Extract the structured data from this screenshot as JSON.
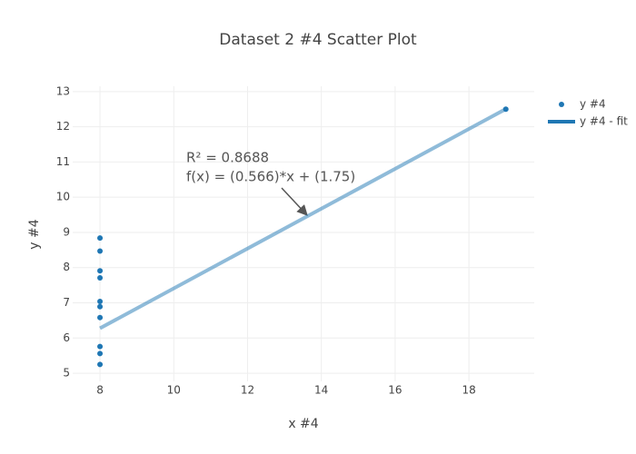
{
  "chart_data": {
    "type": "scatter",
    "title": "Dataset 2 #4 Scatter Plot",
    "x_label": "x #4",
    "y_label": "y #4",
    "series": [
      {
        "name": "y #4",
        "color": "#1f77b4",
        "mode": "markers",
        "x": [
          8,
          8,
          8,
          8,
          8,
          8,
          8,
          19,
          8,
          8,
          8
        ],
        "values": [
          6.58,
          5.76,
          7.71,
          8.84,
          8.47,
          7.04,
          5.25,
          12.5,
          5.56,
          7.91,
          6.89
        ]
      },
      {
        "name": "y #4 - fit",
        "color": "#1f77b4",
        "mode": "line",
        "x": [
          8,
          19
        ],
        "values": [
          6.278,
          12.504
        ]
      }
    ],
    "annotations": [
      "R² = 0.8688",
      "f(x) = (0.566)*x + (1.75)"
    ],
    "xlim": [
      7.26,
      19.77
    ],
    "xticks": [
      8,
      10,
      12,
      14,
      16,
      18
    ],
    "ylim": [
      4.77,
      13.15
    ],
    "yticks": [
      5,
      6,
      7,
      8,
      9,
      10,
      11,
      12,
      13
    ],
    "grid": true,
    "legend": "top-right"
  }
}
